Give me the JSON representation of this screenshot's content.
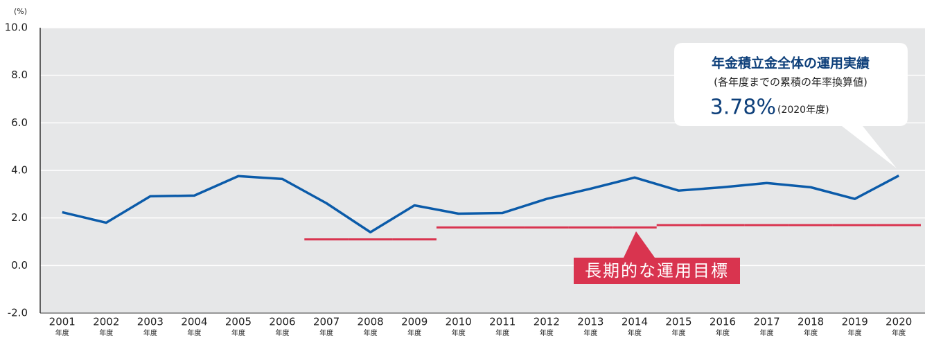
{
  "chart_data": {
    "type": "line",
    "y_unit": "(%)",
    "categories": [
      "2001",
      "2002",
      "2003",
      "2004",
      "2005",
      "2006",
      "2007",
      "2008",
      "2009",
      "2010",
      "2011",
      "2012",
      "2013",
      "2014",
      "2015",
      "2016",
      "2017",
      "2018",
      "2019",
      "2020"
    ],
    "category_suffix": "年度",
    "series": [
      {
        "name": "年金積立金全体の運用実績",
        "color": "#0b5ba9",
        "values": [
          2.24,
          1.8,
          2.91,
          2.94,
          3.76,
          3.64,
          2.62,
          1.4,
          2.53,
          2.18,
          2.21,
          2.8,
          3.23,
          3.7,
          3.15,
          3.29,
          3.47,
          3.29,
          2.8,
          3.78
        ],
        "value_labels": [
          null,
          null,
          null,
          null,
          null,
          null,
          null,
          null,
          null,
          null,
          null,
          null,
          null,
          null,
          null,
          null,
          null,
          null,
          null,
          "3.78%"
        ]
      }
    ],
    "annotation": {
      "subtitle": "(各年度までの累積の年率換算値)",
      "note": "(2020年度)"
    },
    "target": {
      "name": "長期的な運用目標",
      "color": "#d9344f",
      "values": [
        null,
        null,
        null,
        null,
        null,
        null,
        1.1,
        1.1,
        1.1,
        1.6,
        1.6,
        1.6,
        1.6,
        1.6,
        1.7,
        1.7,
        1.7,
        1.7,
        1.7,
        1.7
      ]
    },
    "ylim": [
      -2,
      10
    ],
    "yticks": [
      {
        "value": -2,
        "label": "-2.0"
      },
      {
        "value": 0,
        "label": "0.0"
      },
      {
        "value": 2,
        "label": "2.0"
      },
      {
        "value": 4,
        "label": "4.0"
      },
      {
        "value": 6,
        "label": "6.0"
      },
      {
        "value": 8,
        "label": "8.0"
      },
      {
        "value": 10,
        "label": "10.0"
      }
    ],
    "grid": true
  }
}
